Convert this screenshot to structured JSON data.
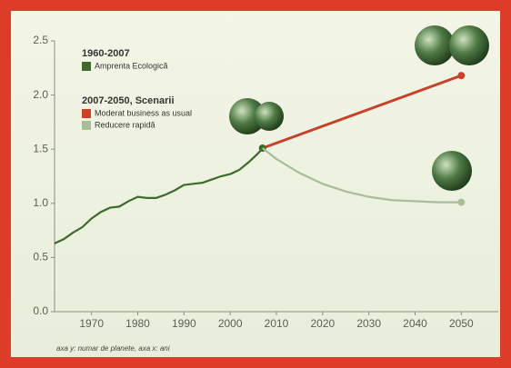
{
  "chart_data": {
    "type": "line",
    "legend_groups": [
      "1960-2007",
      "2007-2050, Scenarii"
    ],
    "note": "axa y: numar de planete, axa x: ani",
    "series": [
      {
        "name": "Amprenta Ecologică",
        "color": "#3e6b2c",
        "x": [
          1962,
          1964,
          1966,
          1968,
          1970,
          1972,
          1974,
          1976,
          1978,
          1980,
          1982,
          1984,
          1986,
          1988,
          1990,
          1992,
          1994,
          1996,
          1998,
          2000,
          2002,
          2004,
          2006,
          2007
        ],
        "values": [
          0.63,
          0.67,
          0.73,
          0.78,
          0.86,
          0.92,
          0.96,
          0.97,
          1.02,
          1.06,
          1.05,
          1.05,
          1.08,
          1.12,
          1.17,
          1.18,
          1.19,
          1.22,
          1.25,
          1.27,
          1.31,
          1.38,
          1.46,
          1.51
        ]
      },
      {
        "name": "Moderat business as usual",
        "color": "#c8412a",
        "x": [
          2007,
          2050
        ],
        "values": [
          1.51,
          2.18
        ]
      },
      {
        "name": "Reducere rapidă",
        "color": "#a9bd98",
        "x": [
          2007,
          2010,
          2015,
          2020,
          2025,
          2030,
          2035,
          2040,
          2045,
          2050
        ],
        "values": [
          1.51,
          1.41,
          1.28,
          1.18,
          1.11,
          1.06,
          1.03,
          1.02,
          1.01,
          1.01
        ]
      }
    ],
    "xlim": [
      1962,
      2058
    ],
    "xticks": [
      1970,
      1980,
      1990,
      2000,
      2010,
      2020,
      2030,
      2040,
      2050
    ],
    "ylim": [
      0,
      2.5
    ],
    "yticks": [
      {
        "value": 0,
        "label": "0.0"
      },
      {
        "value": 0.5,
        "label": "0.5"
      },
      {
        "value": 1,
        "label": "1.0"
      },
      {
        "value": 1.5,
        "label": "1.5"
      },
      {
        "value": 2,
        "label": "2.0"
      },
      {
        "value": 2.5,
        "label": "2.5"
      }
    ],
    "grid": false
  }
}
